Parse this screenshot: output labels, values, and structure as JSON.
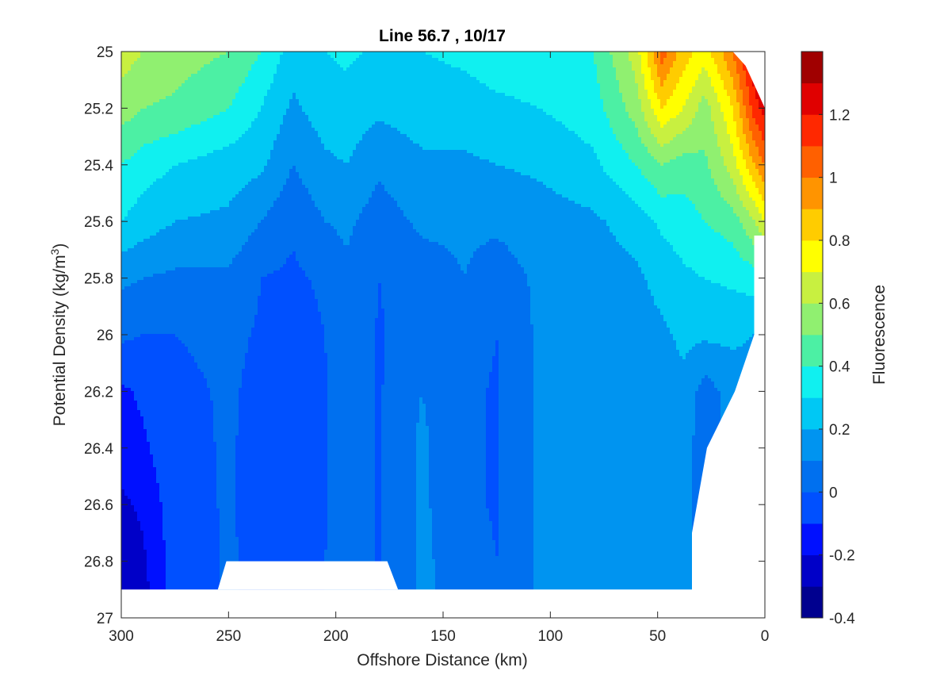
{
  "chart_data": {
    "type": "heatmap",
    "subtype": "filled-contour",
    "title": "Line 56.7 , 10/17",
    "xlabel": "Offshore Distance (km)",
    "ylabel_main": "Potential Density (kg/m",
    "ylabel_sup": "3",
    "ylabel_end": ")",
    "xlim": [
      300,
      0
    ],
    "x_reversed": true,
    "ylim": [
      25,
      27
    ],
    "y_reversed": true,
    "x_ticks": [
      300,
      250,
      200,
      150,
      100,
      50,
      0
    ],
    "y_ticks": [
      25,
      25.2,
      25.4,
      25.6,
      25.8,
      26,
      26.2,
      26.4,
      26.6,
      26.8,
      27
    ],
    "y_tick_labels": [
      "25",
      "25.2",
      "25.4",
      "25.6",
      "25.8",
      "26",
      "26.2",
      "26.4",
      "26.6",
      "26.8",
      "27"
    ],
    "colorbar": {
      "label": "Fluorescence",
      "range": [
        -0.4,
        1.4
      ],
      "ticks": [
        -0.4,
        -0.2,
        0,
        0.2,
        0.4,
        0.6,
        0.8,
        1,
        1.2
      ],
      "tick_labels": [
        "-0.4",
        "-0.2",
        "0",
        "0.2",
        "0.4",
        "0.6",
        "0.8",
        "1",
        "1.2"
      ],
      "levels": [
        -0.4,
        -0.3,
        -0.2,
        -0.1,
        0,
        0.1,
        0.2,
        0.3,
        0.4,
        0.5,
        0.6,
        0.7,
        0.8,
        0.9,
        1.0,
        1.1,
        1.2,
        1.3,
        1.4
      ],
      "colors": [
        "#00008f",
        "#0000c8",
        "#0010ff",
        "#0050ff",
        "#0070ef",
        "#0094f0",
        "#00c8f4",
        "#10f0f0",
        "#4cf0a4",
        "#90f070",
        "#c8f040",
        "#ffff00",
        "#ffcc00",
        "#ff9400",
        "#ff6000",
        "#ff2800",
        "#e00000",
        "#a00000"
      ]
    },
    "sections": [
      {
        "x": 300,
        "values": [
          0.65,
          0.55,
          0.4,
          0.3,
          0.12,
          0.02,
          -0.12,
          -0.15,
          -0.22,
          -0.28,
          -0.3
        ]
      },
      {
        "x": 290,
        "values": [
          0.6,
          0.5,
          0.35,
          0.25,
          0.1,
          0.0,
          -0.08,
          -0.12,
          -0.18,
          -0.22,
          -0.25
        ]
      },
      {
        "x": 275,
        "values": [
          0.55,
          0.48,
          0.3,
          0.2,
          0.08,
          0.0,
          -0.02,
          -0.03,
          -0.04,
          -0.05,
          -0.05
        ]
      },
      {
        "x": 250,
        "values": [
          0.5,
          0.4,
          0.25,
          0.18,
          0.08,
          0.02,
          0.01,
          0.01,
          0.01,
          0.01,
          0.01
        ]
      },
      {
        "x": 235,
        "values": [
          0.4,
          0.3,
          0.22,
          0.1,
          0.0,
          -0.01,
          -0.02,
          -0.03,
          -0.04,
          -0.02,
          -0.02
        ]
      },
      {
        "x": 220,
        "values": [
          0.25,
          0.18,
          0.1,
          0.02,
          -0.02,
          -0.05,
          -0.08,
          -0.09,
          -0.1,
          -0.05,
          -0.05
        ]
      },
      {
        "x": 205,
        "values": [
          0.3,
          0.25,
          0.18,
          0.1,
          0.02,
          0.0,
          -0.01,
          -0.01,
          -0.01,
          0.0,
          0.0
        ]
      },
      {
        "x": 195,
        "values": [
          0.32,
          0.26,
          0.2,
          0.12,
          0.08,
          0.1,
          0.1,
          0.1,
          0.1,
          0.05,
          0.05
        ]
      },
      {
        "x": 180,
        "values": [
          0.28,
          0.22,
          0.12,
          0.05,
          0.0,
          -0.01,
          -0.01,
          -0.01,
          -0.01,
          -0.01,
          -0.01
        ]
      },
      {
        "x": 160,
        "values": [
          0.3,
          0.25,
          0.18,
          0.12,
          0.05,
          0.05,
          0.1,
          0.12,
          0.12,
          0.12,
          0.12
        ]
      },
      {
        "x": 140,
        "values": [
          0.32,
          0.26,
          0.18,
          0.12,
          0.1,
          0.05,
          0.02,
          0.02,
          0.02,
          0.05,
          0.05
        ]
      },
      {
        "x": 125,
        "values": [
          0.35,
          0.28,
          0.2,
          0.12,
          0.05,
          0.0,
          -0.01,
          -0.01,
          -0.01,
          0.0,
          0.0
        ]
      },
      {
        "x": 105,
        "values": [
          0.36,
          0.3,
          0.22,
          0.15,
          0.12,
          0.12,
          0.12,
          0.12,
          0.12,
          0.12,
          0.12
        ]
      },
      {
        "x": 80,
        "values": [
          0.4,
          0.35,
          0.28,
          0.18,
          0.14,
          0.12,
          0.12,
          0.12,
          0.12,
          0.12,
          0.12
        ]
      },
      {
        "x": 60,
        "values": [
          0.65,
          0.55,
          0.4,
          0.25,
          0.18,
          0.14,
          0.13,
          0.13,
          0.13,
          0.13,
          0.13
        ]
      },
      {
        "x": 48,
        "values": [
          1.05,
          0.8,
          0.5,
          0.32,
          0.24,
          0.18,
          0.15,
          0.15,
          0.15,
          0.15,
          0.15
        ]
      },
      {
        "x": 38,
        "values": [
          0.85,
          0.7,
          0.45,
          0.35,
          0.28,
          0.22,
          0.18,
          0.18,
          0.18,
          0.18,
          0.18
        ]
      },
      {
        "x": 28,
        "values": [
          0.75,
          0.55,
          0.48,
          0.4,
          0.3,
          0.22,
          0.05,
          0.0,
          0.0,
          0.0,
          0.0
        ]
      },
      {
        "x": 15,
        "values": [
          1.0,
          0.8,
          0.65,
          0.45,
          0.32,
          0.22,
          0.15,
          0.15,
          0.15,
          0.15,
          0.15
        ]
      },
      {
        "x": 5,
        "values": [
          1.3,
          1.15,
          0.9,
          0.6,
          0.35,
          0.2,
          0.15,
          0.15,
          0.15,
          0.15,
          0.15
        ]
      },
      {
        "x": 0,
        "values": [
          1.4,
          1.25,
          1.0,
          0.7,
          0.4,
          0.2,
          0.15,
          0.15,
          0.15,
          0.15,
          0.15
        ]
      }
    ],
    "section_depths": [
      25,
      25.2,
      25.4,
      25.6,
      25.8,
      26,
      26.2,
      26.4,
      26.6,
      26.8,
      27
    ],
    "no_data_regions": [
      {
        "name": "bottom-strip",
        "points": [
          [
            300,
            26.9
          ],
          [
            300,
            27
          ],
          [
            0,
            27
          ],
          [
            0,
            25.65
          ],
          [
            5,
            25.65
          ],
          [
            5,
            26.0
          ],
          [
            14,
            26.2
          ],
          [
            27,
            26.4
          ],
          [
            34,
            26.7
          ],
          [
            34,
            26.9
          ]
        ]
      },
      {
        "name": "bottom-notch",
        "points": [
          [
            255,
            26.9
          ],
          [
            251,
            26.8
          ],
          [
            176,
            26.8
          ],
          [
            171,
            26.9
          ]
        ]
      },
      {
        "name": "top-right-corner",
        "points": [
          [
            15,
            25
          ],
          [
            0,
            25
          ],
          [
            0,
            25.2
          ],
          [
            3,
            25.15
          ],
          [
            6,
            25.1
          ],
          [
            9,
            25.05
          ]
        ]
      }
    ]
  }
}
